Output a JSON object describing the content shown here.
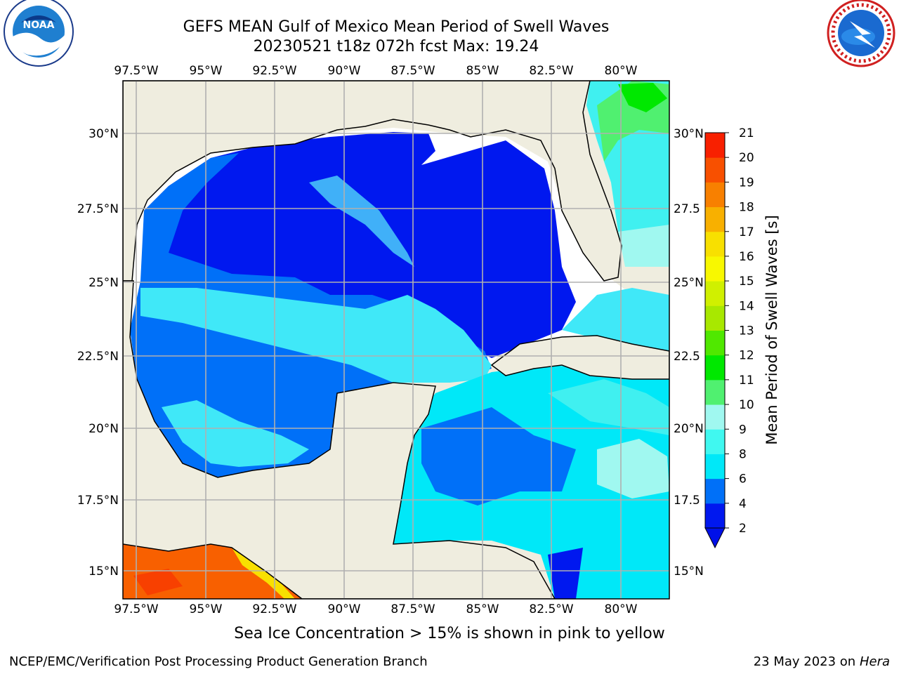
{
  "header": {
    "title": "GEFS MEAN Gulf of Mexico Mean Period of Swell Waves",
    "subtitle": "20230521 t18z 072h fcst   Max: 19.24"
  },
  "logos": {
    "left": {
      "name": "noaa-logo",
      "text": "NOAA",
      "ring_text": "NATIONAL OCEANIC AND ATMOSPHERIC ADMINISTRATION · U.S. DEPARTMENT OF COMMERCE"
    },
    "right": {
      "name": "nws-logo",
      "ring_text": "NATIONAL WEATHER SERVICE"
    }
  },
  "map": {
    "lon_labels": [
      "97.5°W",
      "95°W",
      "92.5°W",
      "90°W",
      "87.5°W",
      "85°W",
      "82.5°W",
      "80°W"
    ],
    "lat_labels_left": [
      "30°N",
      "27.5°N",
      "25°N",
      "22.5°N",
      "20°N",
      "17.5°N",
      "15°N"
    ],
    "lat_labels_right": [
      "30°N",
      "27.5",
      "25°N",
      "22.5",
      "20°N",
      "17.5",
      "15°N"
    ]
  },
  "colorbar": {
    "label": "Mean Period of Swell Waves [s]",
    "ticks": [
      "2",
      "4",
      "6",
      "8",
      "9",
      "10",
      "11",
      "12",
      "13",
      "14",
      "15",
      "16",
      "17",
      "18",
      "19",
      "20",
      "21"
    ],
    "colors": [
      "#0018ef",
      "#0070f8",
      "#00e8f8",
      "#40f8f0",
      "#a0f8f0",
      "#50f070",
      "#00e800",
      "#50e800",
      "#a8e800",
      "#d0f000",
      "#f8f800",
      "#f8e000",
      "#f8b000",
      "#f88000",
      "#f85000",
      "#f82000",
      "#e80000"
    ],
    "extend_color": "#0010e8"
  },
  "footer": {
    "note": "Sea Ice Concentration > 15% is shown in pink to yellow",
    "credit": "NCEP/EMC/Verification Post Processing Product Generation Branch",
    "date": "23 May 2023 on",
    "host": "Hera"
  }
}
